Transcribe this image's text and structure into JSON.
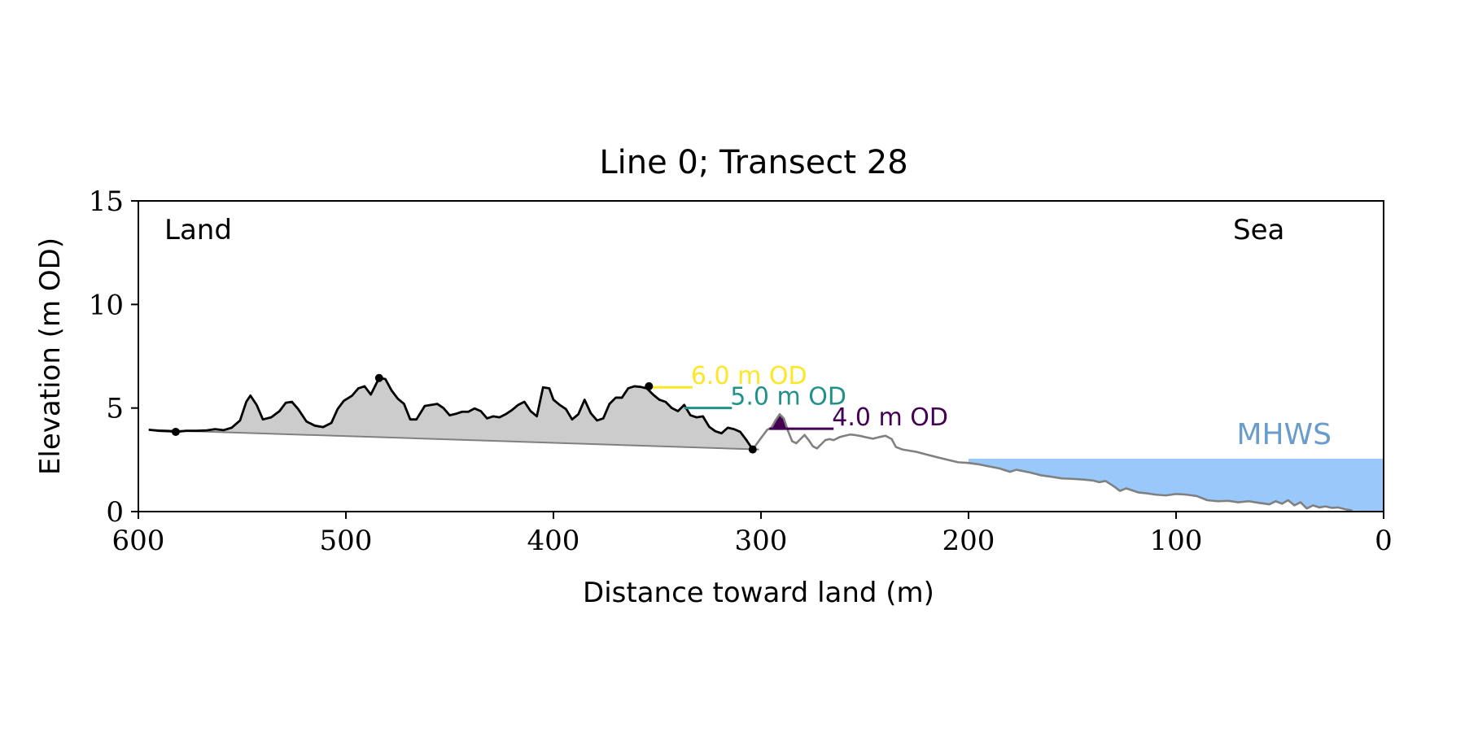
{
  "chart_data": {
    "type": "line",
    "title": "Line 0; Transect 28",
    "xlabel": "Distance toward land (m)",
    "ylabel": "Elevation (m OD)",
    "xlim": [
      600,
      0
    ],
    "ylim": [
      0,
      15
    ],
    "x_ticks": [
      600,
      500,
      400,
      300,
      200,
      100,
      0
    ],
    "y_ticks": [
      0,
      5,
      10,
      15
    ],
    "x_tick_labels": [
      "600",
      "500",
      "400",
      "300",
      "200",
      "100",
      "0"
    ],
    "y_tick_labels": [
      "0",
      "5",
      "10",
      "15"
    ],
    "grid": false,
    "annotations": {
      "land": "Land",
      "sea": "Sea",
      "mhws": "MHWS"
    },
    "mhws": {
      "elevation": 2.55,
      "x_from": 200,
      "x_to": 0,
      "color": "#99c9fb",
      "label_color": "#6a9ccb"
    },
    "levels": [
      {
        "label": "6.0 m OD",
        "elevation": 6.0,
        "x_from": 355,
        "x_to": 333,
        "color": "#fde725"
      },
      {
        "label": "5.0 m OD",
        "elevation": 5.0,
        "x_from": 337,
        "x_to": 314,
        "color": "#21918c"
      },
      {
        "label": "4.0 m OD",
        "elevation": 4.0,
        "x_from": 296,
        "x_to": 265,
        "color": "#440154"
      }
    ],
    "dune_baseline": [
      [
        595,
        3.95
      ],
      [
        301,
        3.0
      ]
    ],
    "key_points": [
      [
        582,
        3.85
      ],
      [
        484,
        6.45
      ],
      [
        354,
        6.05
      ],
      [
        304,
        3.0
      ]
    ],
    "purple_fill_region": [
      296,
      283
    ],
    "series": [
      {
        "role": "seaward-profile",
        "color": "#808080",
        "x": [
          304,
          300,
          297,
          295,
          293,
          291,
          289,
          287,
          285,
          283,
          281,
          279,
          277,
          275,
          273,
          271,
          269,
          267,
          265,
          262,
          260,
          257,
          255,
          252,
          249,
          246,
          243,
          240,
          237,
          235,
          232,
          229,
          225,
          220,
          215,
          210,
          205,
          200,
          195,
          190,
          185,
          180,
          177,
          174,
          170,
          165,
          160,
          155,
          150,
          145,
          140,
          137,
          134,
          130,
          127,
          124,
          121,
          118,
          114,
          110,
          105,
          100,
          95,
          90,
          85,
          80,
          75,
          70,
          65,
          60,
          55,
          52,
          49,
          46,
          43,
          40,
          37,
          34,
          31,
          28,
          25,
          22,
          18,
          15
        ],
        "y": [
          3.0,
          3.55,
          3.95,
          4.05,
          4.4,
          4.7,
          4.5,
          3.9,
          3.4,
          3.3,
          3.5,
          3.7,
          3.45,
          3.15,
          3.05,
          3.25,
          3.45,
          3.5,
          3.45,
          3.6,
          3.65,
          3.72,
          3.7,
          3.65,
          3.58,
          3.52,
          3.6,
          3.66,
          3.5,
          3.12,
          3.0,
          2.95,
          2.88,
          2.75,
          2.62,
          2.5,
          2.38,
          2.35,
          2.28,
          2.18,
          2.08,
          1.92,
          2.02,
          1.96,
          1.88,
          1.75,
          1.68,
          1.6,
          1.58,
          1.55,
          1.5,
          1.42,
          1.48,
          1.22,
          1.0,
          1.12,
          1.02,
          0.92,
          0.88,
          0.82,
          0.78,
          0.85,
          0.82,
          0.75,
          0.55,
          0.5,
          0.52,
          0.45,
          0.5,
          0.42,
          0.35,
          0.5,
          0.38,
          0.55,
          0.3,
          0.45,
          0.15,
          0.3,
          0.2,
          0.25,
          0.18,
          0.2,
          0.1,
          0.05
        ]
      },
      {
        "role": "dune-profile",
        "color": "#000000",
        "x": [
          595,
          590,
          585,
          582,
          577,
          572,
          567,
          563,
          559,
          555,
          551,
          548,
          546,
          543,
          540,
          536,
          532,
          529,
          526,
          523,
          519,
          515,
          511,
          507,
          504,
          501,
          497,
          494,
          491,
          488,
          484,
          481,
          478,
          475,
          472,
          469,
          466,
          462,
          459,
          456,
          453,
          450,
          447,
          444,
          441,
          438,
          435,
          432,
          429,
          426,
          423,
          420,
          417,
          414,
          411,
          408,
          405,
          402,
          400,
          397,
          394,
          391,
          388,
          385,
          382,
          379,
          376,
          373,
          370,
          367,
          364,
          361,
          358,
          355,
          352,
          349,
          346,
          343,
          340,
          337,
          334,
          331,
          328,
          325,
          322,
          319,
          316,
          313,
          310,
          307,
          304
        ],
        "y": [
          3.95,
          3.9,
          3.88,
          3.85,
          3.9,
          3.9,
          3.92,
          3.98,
          3.93,
          4.05,
          4.4,
          5.3,
          5.6,
          5.15,
          4.45,
          4.55,
          4.85,
          5.25,
          5.3,
          4.95,
          4.35,
          4.15,
          4.08,
          4.28,
          4.95,
          5.35,
          5.6,
          5.95,
          6.05,
          5.65,
          6.45,
          6.4,
          5.85,
          5.45,
          5.2,
          4.45,
          4.45,
          5.1,
          5.15,
          5.2,
          5.0,
          4.65,
          4.72,
          4.82,
          4.82,
          4.98,
          4.85,
          4.5,
          4.6,
          4.55,
          4.7,
          4.9,
          5.15,
          5.3,
          4.85,
          4.6,
          6.0,
          5.95,
          5.4,
          5.15,
          4.95,
          4.45,
          4.7,
          5.4,
          4.75,
          4.4,
          4.5,
          5.2,
          5.5,
          5.5,
          5.95,
          6.05,
          6.02,
          5.95,
          5.65,
          5.4,
          5.3,
          5.0,
          4.85,
          5.15,
          4.65,
          4.55,
          4.6,
          4.1,
          3.88,
          3.78,
          4.05,
          3.98,
          3.85,
          3.45,
          3.0
        ]
      }
    ]
  }
}
